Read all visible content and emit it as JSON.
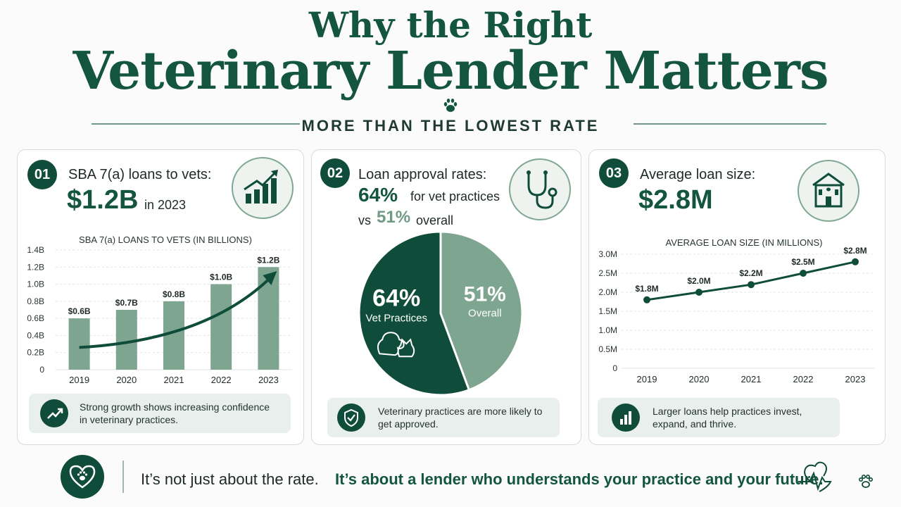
{
  "header": {
    "title_line1": "Why the Right",
    "title_line2": "Veterinary Lender Matters",
    "subtitle": "MORE THAN THE LOWEST RATE"
  },
  "cards": [
    {
      "number": "01",
      "heading": "SBA 7(a) loans to vets:",
      "big_value": "$1.2B",
      "suffix": "in 2023",
      "icon": "growth-chart-icon",
      "note_icon": "trend-up-icon",
      "note": "Strong growth shows increasing confidence in veterinary practices."
    },
    {
      "number": "02",
      "heading": "Loan approval rates:",
      "big_value": "64%",
      "suffix": "for vet practices",
      "vs_label": "vs",
      "compare_value": "51%",
      "compare_suffix": "overall",
      "icon": "stethoscope-icon",
      "note_icon": "shield-check-icon",
      "note": "Veterinary practices are more likely to get approved."
    },
    {
      "number": "03",
      "heading": "Average loan size:",
      "big_value": "$2.8M",
      "icon": "vet-clinic-icon",
      "note_icon": "bar-chart-icon",
      "note": "Larger loans help practices invest, expand, and thrive."
    }
  ],
  "chart_data": [
    {
      "type": "bar",
      "title": "SBA 7(a) LOANS TO VETS (IN BILLIONS)",
      "categories": [
        "2019",
        "2020",
        "2021",
        "2022",
        "2023"
      ],
      "values": [
        0.6,
        0.7,
        0.8,
        1.0,
        1.2
      ],
      "data_labels": [
        "$0.6B",
        "$0.7B",
        "$0.8B",
        "$1.0B",
        "$1.2B"
      ],
      "ylim": [
        0,
        1.4
      ],
      "yticks": [
        "0",
        "0.2B",
        "0.4B",
        "0.6B",
        "0.8B",
        "1.0B",
        "1.2B",
        "1.4B"
      ],
      "grid": true,
      "color": "#7da58f"
    },
    {
      "type": "pie",
      "slices": [
        {
          "label_value": "64%",
          "label": "Vet Practices",
          "value": 64,
          "color": "#0f4d3a"
        },
        {
          "label_value": "51%",
          "label": "Overall",
          "value": 51,
          "color": "#7da58f"
        }
      ]
    },
    {
      "type": "line",
      "title": "AVERAGE LOAN SIZE (IN MILLIONS)",
      "categories": [
        "2019",
        "2020",
        "2021",
        "2022",
        "2023"
      ],
      "values": [
        1.8,
        2.0,
        2.2,
        2.5,
        2.8
      ],
      "data_labels": [
        "$1.8M",
        "$2.0M",
        "$2.2M",
        "$2.5M",
        "$2.8M"
      ],
      "ylim": [
        0,
        3.0
      ],
      "yticks": [
        "0",
        "0.5M",
        "1.0M",
        "1.5M",
        "2.0M",
        "2.5M",
        "3.0M"
      ],
      "grid": true,
      "color": "#0f4d3a"
    }
  ],
  "footer": {
    "plain": "It’s not just about the rate.",
    "bold": "It’s about a lender who understands your practice and your future.",
    "left_icon": "heart-paw-icon",
    "right_icon": "heartbeat-paw-icon"
  },
  "colors": {
    "primary": "#0f4d3a",
    "accent": "#7da58f",
    "background": "#fafbfa"
  }
}
